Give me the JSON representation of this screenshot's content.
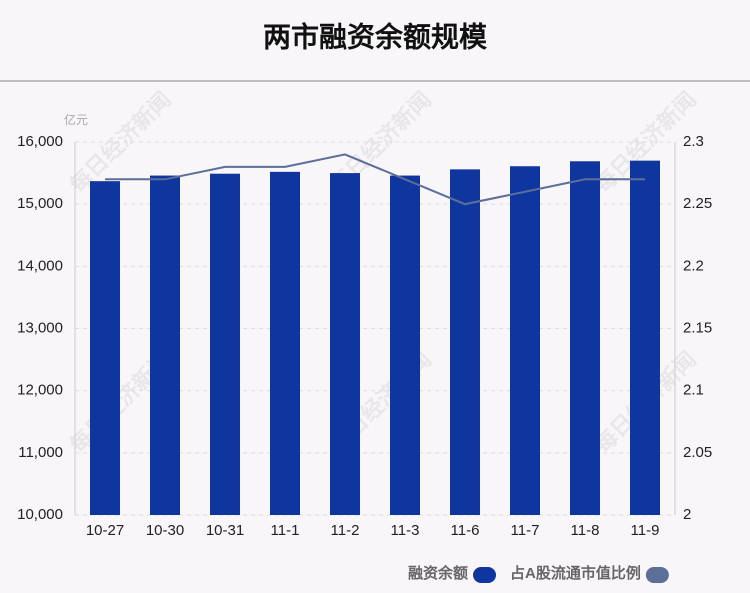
{
  "chart_data": {
    "type": "bar",
    "title": "两市融资余额规模",
    "unit": "亿元",
    "watermark": "每日经济新闻",
    "categories": [
      "10-27",
      "10-30",
      "10-31",
      "11-1",
      "11-2",
      "11-3",
      "11-6",
      "11-7",
      "11-8",
      "11-9"
    ],
    "series": [
      {
        "name": "融资余额",
        "type": "bar",
        "color": "#0f359e",
        "values": [
          15370,
          15460,
          15490,
          15520,
          15500,
          15460,
          15560,
          15610,
          15690,
          15700
        ]
      },
      {
        "name": "占A股流通市值比例",
        "type": "line",
        "axis": "y2",
        "color": "#5b6f98",
        "values": [
          2.27,
          2.27,
          2.28,
          2.28,
          2.29,
          2.27,
          2.25,
          2.26,
          2.27,
          2.27
        ]
      }
    ],
    "ylim": [
      10000,
      16000
    ],
    "yticks": [
      {
        "value": 10000,
        "label": "10,000"
      },
      {
        "value": 11000,
        "label": "11,000"
      },
      {
        "value": 12000,
        "label": "12,000"
      },
      {
        "value": 13000,
        "label": "13,000"
      },
      {
        "value": 14000,
        "label": "14,000"
      },
      {
        "value": 15000,
        "label": "15,000"
      },
      {
        "value": 16000,
        "label": "16,000"
      }
    ],
    "y2lim": [
      2,
      2.3
    ],
    "y2ticks": [
      2,
      2.05,
      2.1,
      2.15,
      2.2,
      2.25,
      2.3
    ],
    "grid": true
  }
}
